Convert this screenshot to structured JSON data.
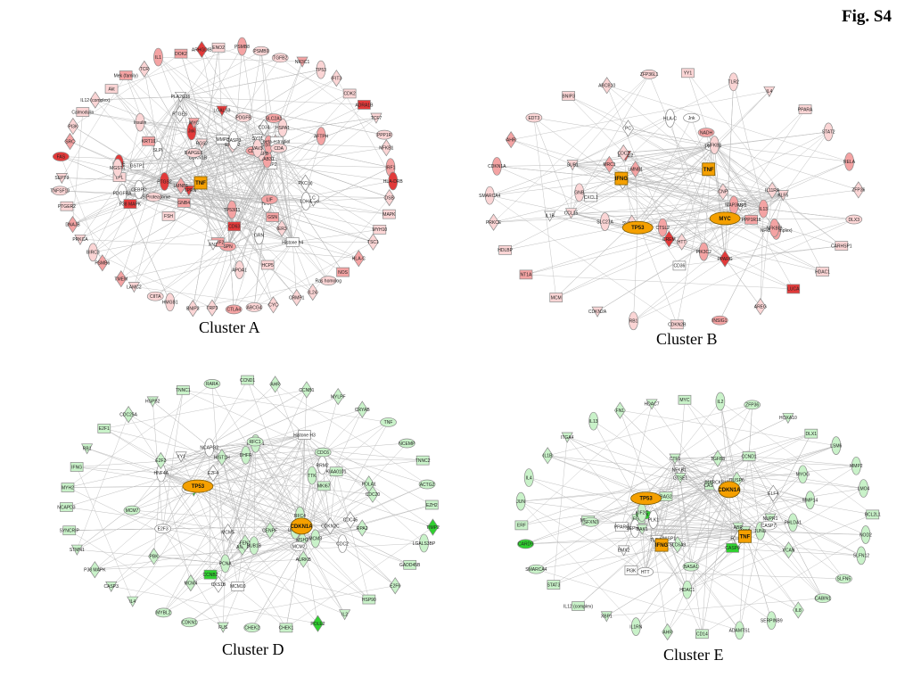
{
  "figure_label": "Fig. S4",
  "colors": {
    "edge": "#b8b8b8",
    "pink_light": "#fbd5d5",
    "pink_mid": "#f4a3a3",
    "red": "#e23a3a",
    "orange": "#f5a000",
    "green_light": "#c9f2c9",
    "green": "#2fd12f",
    "white_node": "#ffffff",
    "node_stroke": "#8a8a8a"
  },
  "panels": [
    {
      "id": "a",
      "caption": "Cluster A",
      "palette": "red",
      "hubs": [
        {
          "label": "TNF",
          "color": "orange"
        }
      ],
      "nodes": [
        "DSB",
        "MAPK",
        "MYH10",
        "TSC1",
        "HLA-C",
        "NOS",
        "Ras homolog",
        "IL24",
        "CRMP1",
        "CYC",
        "ABCG4",
        "CTLA4",
        "TRP3",
        "BNIP3",
        "HMGB1",
        "CIITA",
        "LAMC2",
        "TMEM",
        "PSMB6",
        "BIRC3",
        "PRKCA",
        "DNAJB",
        "PTGER2",
        "TNFSF10",
        "SEPT9",
        "FAS",
        "SRC",
        "PI3K",
        "Calmodulin",
        "IL12 (complex)",
        "Akt",
        "Mek (family)",
        "TCR",
        "IL1",
        "DOK2",
        "ARHGDIB",
        "ENO2",
        "PSMB8",
        "PSMB9",
        "TGFB2",
        "NR3C1",
        "TP53",
        "IFIT3",
        "CDK2",
        "ADRA1B",
        "TCF7",
        "PPP1R",
        "NFKB1",
        "IRF1",
        "HLA-DRB",
        "PDGFRA",
        "NRP2",
        "MMP3",
        "SPN",
        "PTGS2",
        "IL18",
        "PLA2G16",
        "Histone h4",
        "CD63",
        "HRH",
        "APOA1",
        "GSN",
        "HSPA1",
        "LIF",
        "AFTPH",
        "TGIF2",
        "CTSB",
        "RAB31",
        "Jnk",
        "P38 MAPK",
        "26S Proteasome",
        "FSH",
        "Insulin",
        "NFkB (complex)",
        "ERK1/2",
        "beta-estradiol",
        "LPL",
        "IER3",
        "SLPI",
        "MYC",
        "SYT1",
        "PLC",
        "LGALS3",
        "GRN",
        "CDKN1B",
        "PKC(s)",
        "GSTP1",
        "RAPGEF",
        "CD34",
        "HCP5",
        "GNB4",
        "RAGE",
        "MGST1",
        "FN1",
        "PTPRN",
        "SLC2A1",
        "KRT19",
        "CDA",
        "CEBPD",
        "PTGES",
        "TP53I11",
        "CASP3",
        "CD44",
        "PDGFB",
        "LDHA",
        "LMNB1",
        "CASP8",
        "RGS2",
        "VAV3"
      ]
    },
    {
      "id": "b",
      "caption": "Cluster B",
      "palette": "red",
      "hubs": [
        {
          "label": "MYC",
          "color": "orange"
        },
        {
          "label": "TP53",
          "color": "orange"
        },
        {
          "label": "IFNG",
          "color": "orange"
        },
        {
          "label": "TNF",
          "color": "orange"
        }
      ],
      "nodes": [
        "DLX3",
        "CARHSP1",
        "HDAC1",
        "LUCA",
        "AREG",
        "INSIG1",
        "CDKN2B",
        "RB1",
        "CDKN2A",
        "MCM",
        "NT1A",
        "HDLBP",
        "PRKCE",
        "SMARCA4",
        "CDKN1A",
        "AHR",
        "EDT3",
        "BNIP3",
        "ABCB10",
        "ZFP36L1",
        "YY1",
        "TLR2",
        "IL4",
        "PPARA",
        "STAT2",
        "RELA",
        "ZFP36",
        "PPARG",
        "SUB1",
        "PPARD",
        "KLF5",
        "MMP2",
        "NFKB1",
        "IL13",
        "CCL15",
        "CREM",
        "MRC1",
        "HTT",
        "IL1B",
        "NFkB (complex)",
        "ERK1/2",
        "Jnk",
        "HLA-C",
        "PPP1R16",
        "GNB",
        "CNP",
        "NADH",
        "MAP3K8",
        "NFKBIB",
        "PIK3C2",
        "LMNB1",
        "SLC6A14",
        "FOS",
        "PC",
        "CD36",
        "CTSL2",
        "CXCL1",
        "IL11RA",
        "CDC2",
        "SLC27A"
      ]
    },
    {
      "id": "d",
      "caption": "Cluster D",
      "palette": "green",
      "hubs": [
        {
          "label": "CDKN1A",
          "color": "orange"
        },
        {
          "label": "TP53",
          "color": "orange"
        }
      ],
      "nodes": [
        "TIMP2",
        "LGALS3BP",
        "GADD45B",
        "E2F6",
        "HSP90",
        "IL2",
        "POLE2",
        "CHEK1",
        "CHEK2",
        "FUS",
        "CDKN1",
        "MYBL2",
        "IL4",
        "CASP3",
        "P38 MAPK",
        "STMN1",
        "SYNCRIP",
        "NCAPD3",
        "MYH2",
        "IFNG",
        "RB1",
        "E2F1",
        "CDC25A",
        "HSPB2",
        "TNNC1",
        "RARA",
        "CCND1",
        "AHR",
        "CCNB1",
        "MYLPF",
        "CRYAB",
        "TNF",
        "NCEMP",
        "TNNC2",
        "ACTG2",
        "EZH2",
        "NUSAP1",
        "HNF4A",
        "CDC6",
        "CDKN2C",
        "HIST1H",
        "Histone H3",
        "MSH2",
        "NCAPG2",
        "E2F3",
        "PCNA",
        "RRM2",
        "RFC4",
        "TTK",
        "YY1",
        "CDC20",
        "ANLN",
        "FEN1",
        "ASF1B",
        "DHFR",
        "MCM3",
        "MCM2",
        "E2F4",
        "MCM7",
        "RPA2",
        "MCM5",
        "RFC1",
        "E2F2",
        "UHRF1",
        "BUB1B",
        "AURKB",
        "MCM4",
        "MCM10",
        "CDC45",
        "CCNB2",
        "CENPE",
        "KIF11",
        "PBK",
        "CKS1B",
        "CDC2",
        "KIAA0101",
        "POLA1",
        "MKI67"
      ]
    },
    {
      "id": "e",
      "caption": "Cluster E",
      "palette": "green",
      "hubs": [
        {
          "label": "TNF",
          "color": "orange"
        },
        {
          "label": "IFNG",
          "color": "orange"
        },
        {
          "label": "TP53",
          "color": "orange"
        },
        {
          "label": "CDKN1A",
          "color": "orange"
        }
      ],
      "nodes": [
        "NOD2",
        "SLFN12",
        "SLFN5",
        "CABIN1",
        "IL8",
        "SERPINB9",
        "ADAMTS1",
        "CD14",
        "AHR",
        "IL1RN",
        "XBP1",
        "IL12 (complex)",
        "STAT3",
        "SMARCA4",
        "CARD9",
        "ERF",
        "JUN",
        "IL4",
        "IL1B",
        "ITGA4",
        "IL13",
        "FN1",
        "HDAC7",
        "MYC",
        "IL2",
        "ZFP36",
        "HOXA10",
        "DLX1",
        "LSM6",
        "MMP2",
        "LMO4",
        "BCL2L1",
        "PPARG",
        "CCND1",
        "CASP4",
        "CTF1",
        "HTT",
        "HDAC1",
        "ATF2",
        "JUND",
        "NFKB1",
        "DUSP6",
        "SLC6A9",
        "FGF7",
        "EMX2",
        "SEPHS1",
        "ELF4",
        "ABR",
        "MARCKSL1",
        "PI3K",
        "CASP9",
        "GTSE1",
        "FOXM1",
        "NUPR1",
        "MYOD1",
        "AURKA",
        "MMP14",
        "PLK1",
        "MYOG",
        "WISP1",
        "CASP7",
        "BAG2",
        "KIF2C",
        "BAK1",
        "PHLDA1",
        "TGFB3",
        "VCAN",
        "TUBB",
        "SFXN3",
        "BASA1"
      ]
    }
  ]
}
